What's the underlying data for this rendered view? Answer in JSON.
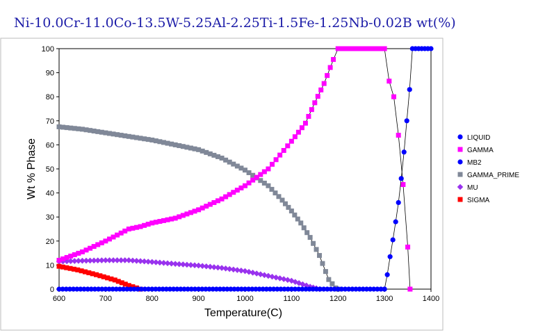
{
  "chart_data": {
    "type": "line",
    "title": "Ni-10.0Cr-11.0Co-13.5W-5.25Al-2.25Ti-1.5Fe-1.25Nb-0.02B wt(%)",
    "xlabel": "Temperature(C)",
    "ylabel": "Wt % Phase",
    "xlim": [
      600,
      1400
    ],
    "ylim": [
      0,
      100
    ],
    "xticks": [
      600,
      700,
      800,
      900,
      1000,
      1100,
      1200,
      1300,
      1400
    ],
    "yticks": [
      0,
      10,
      20,
      30,
      40,
      50,
      60,
      70,
      80,
      90,
      100
    ],
    "grid": false,
    "legend_position": "right",
    "series": [
      {
        "name": "LIQUID",
        "color": "#0000ff",
        "marker": "circle",
        "x": [
          1300,
          1306,
          1312,
          1318,
          1324,
          1330,
          1336,
          1342,
          1348,
          1354,
          1360,
          1380,
          1400
        ],
        "y": [
          0,
          6,
          13.5,
          20.5,
          28,
          36,
          46,
          57,
          70,
          83,
          100,
          100,
          100
        ]
      },
      {
        "name": "GAMMA",
        "color": "#ff00ff",
        "marker": "square",
        "x": [
          600,
          650,
          700,
          750,
          775,
          800,
          850,
          900,
          950,
          1000,
          1050,
          1100,
          1130,
          1150,
          1170,
          1190,
          1200,
          1250,
          1300,
          1310,
          1320,
          1330,
          1340,
          1350,
          1355
        ],
        "y": [
          12,
          15.5,
          20,
          25,
          26,
          27.5,
          29.5,
          33,
          37.5,
          43,
          50,
          61.5,
          69,
          77.5,
          85.5,
          95.5,
          100,
          100,
          100,
          86.5,
          80,
          64,
          43.5,
          17.5,
          0
        ]
      },
      {
        "name": "MB2",
        "color": "#0000ff",
        "marker": "circle",
        "x": [
          600,
          700,
          800,
          900,
          1000,
          1100,
          1200,
          1300
        ],
        "y": [
          0,
          0,
          0,
          0,
          0,
          0,
          0,
          0
        ]
      },
      {
        "name": "GAMMA_PRIME",
        "color": "#808898",
        "marker": "square",
        "x": [
          600,
          650,
          700,
          750,
          800,
          850,
          900,
          950,
          1000,
          1050,
          1080,
          1100,
          1120,
          1140,
          1160,
          1180,
          1195,
          1200
        ],
        "y": [
          67.5,
          66.5,
          65,
          63.5,
          62,
          60,
          58,
          54.5,
          49.5,
          43,
          37,
          32.5,
          27.5,
          21.5,
          14,
          4,
          0.5,
          0
        ]
      },
      {
        "name": "MU",
        "color": "#9932ee",
        "marker": "diamond",
        "x": [
          600,
          650,
          700,
          750,
          800,
          850,
          900,
          950,
          1000,
          1050,
          1100,
          1140,
          1160
        ],
        "y": [
          11.5,
          11.8,
          12,
          12,
          11.3,
          10.5,
          9.8,
          8.8,
          7.5,
          5.5,
          3.5,
          1,
          0
        ]
      },
      {
        "name": "SIGMA",
        "color": "#ff0000",
        "marker": "square",
        "x": [
          600,
          640,
          680,
          720,
          750,
          775
        ],
        "y": [
          9.5,
          8,
          6,
          3.8,
          1.5,
          0
        ]
      }
    ]
  }
}
